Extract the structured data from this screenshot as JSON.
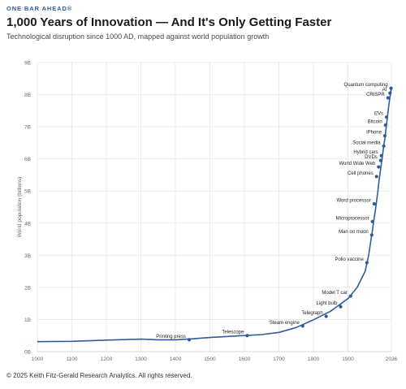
{
  "header": {
    "brand": "ONE BAR AHEAD®",
    "title": "1,000 Years of Innovation — And It's Only Getting Faster",
    "subtitle": "Technological disruption since 1000 AD, mapped against world population growth"
  },
  "footer": {
    "text": "© 2025 Keith Fitz-Gerald Research Analytics. All rights reserved."
  },
  "colors": {
    "line": "#2f5d9c",
    "grid": "#e6e6e6",
    "text": "#1c1c1c"
  },
  "chart_data": {
    "type": "line",
    "title": "1,000 Years of Innovation — And It's Only Getting Faster",
    "ylabel": "World population (billions)",
    "xlabel": "",
    "xlim": [
      1000,
      2026
    ],
    "ylim": [
      0,
      9
    ],
    "grid": true,
    "x_ticks": [
      1000,
      1100,
      1200,
      1300,
      1400,
      1500,
      1600,
      1700,
      1800,
      1900,
      2026
    ],
    "x_tick_labels": [
      "1000",
      "1100",
      "1200",
      "1300",
      "1400",
      "1500",
      "1600",
      "1700",
      "1800",
      "1900",
      "2026"
    ],
    "y_ticks": [
      0,
      1,
      2,
      3,
      4,
      5,
      6,
      7,
      8,
      9
    ],
    "y_tick_labels": [
      "0B",
      "1B",
      "2B",
      "3B",
      "4B",
      "5B",
      "6B",
      "7B",
      "8B",
      "9B"
    ],
    "series": [
      {
        "x": [
          1000,
          1100,
          1200,
          1300,
          1350,
          1400,
          1450,
          1500,
          1600,
          1650,
          1700,
          1750,
          1800,
          1850,
          1900,
          1927,
          1950,
          1960,
          1970,
          1975,
          1980,
          1987,
          1990,
          1995,
          1999,
          2000,
          2005,
          2008,
          2010,
          2015,
          2020,
          2023,
          2026
        ],
        "y": [
          0.31,
          0.32,
          0.36,
          0.39,
          0.37,
          0.37,
          0.4,
          0.44,
          0.5,
          0.53,
          0.6,
          0.75,
          0.99,
          1.26,
          1.65,
          2.0,
          2.5,
          3.0,
          3.7,
          4.07,
          4.44,
          5.0,
          5.3,
          5.7,
          6.0,
          6.1,
          6.5,
          6.7,
          6.9,
          7.35,
          7.8,
          8.0,
          8.2
        ]
      }
    ],
    "events": [
      {
        "label": "Printing press",
        "x": 1440,
        "y": 0.37
      },
      {
        "label": "Telescope",
        "x": 1608,
        "y": 0.5
      },
      {
        "label": "Steam engine",
        "x": 1769,
        "y": 0.8
      },
      {
        "label": "Telegraph",
        "x": 1837,
        "y": 1.1
      },
      {
        "label": "Light bulb",
        "x": 1879,
        "y": 1.4
      },
      {
        "label": "Model T car",
        "x": 1908,
        "y": 1.73
      },
      {
        "label": "Polio vaccine",
        "x": 1955,
        "y": 2.77
      },
      {
        "label": "Man on moon",
        "x": 1969,
        "y": 3.63
      },
      {
        "label": "Microprocessor",
        "x": 1971,
        "y": 4.05
      },
      {
        "label": "Word processor",
        "x": 1976,
        "y": 4.6
      },
      {
        "label": "Cell phones",
        "x": 1983,
        "y": 5.45
      },
      {
        "label": "World Wide Web",
        "x": 1989,
        "y": 5.75
      },
      {
        "label": "DVDs",
        "x": 1995,
        "y": 5.95
      },
      {
        "label": "Hybrid cars",
        "x": 1997,
        "y": 6.1
      },
      {
        "label": "Social media",
        "x": 2004,
        "y": 6.4
      },
      {
        "label": "iPhone",
        "x": 2007,
        "y": 6.72
      },
      {
        "label": "Bitcoin",
        "x": 2009,
        "y": 7.05
      },
      {
        "label": "EVs",
        "x": 2012,
        "y": 7.3
      },
      {
        "label": "CRISPR",
        "x": 2016,
        "y": 7.9
      },
      {
        "label": "AI",
        "x": 2022,
        "y": 8.05
      },
      {
        "label": "Quantum computing",
        "x": 2025,
        "y": 8.2
      }
    ]
  }
}
